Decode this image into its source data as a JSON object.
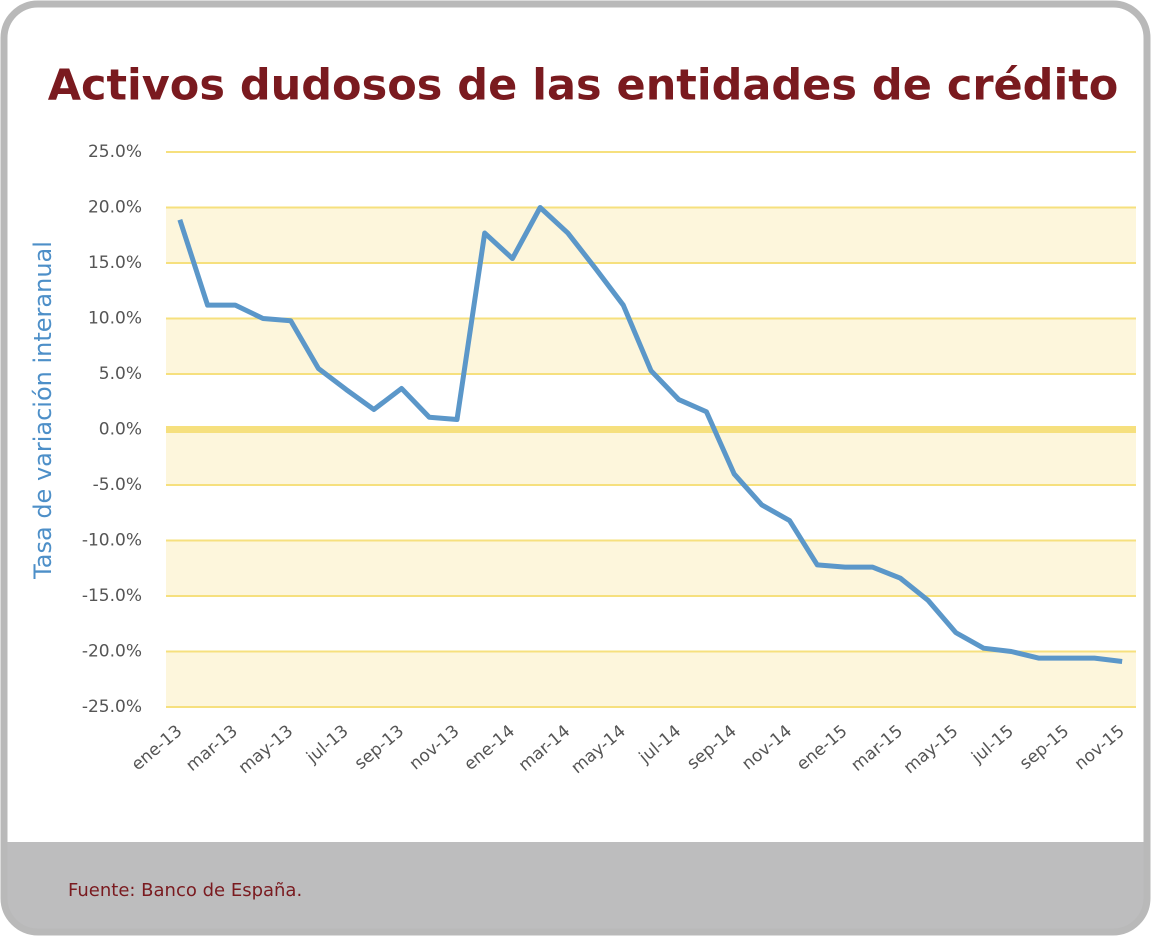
{
  "chart_data": {
    "type": "line",
    "title": "Activos dudosos de las entidades de crédito",
    "y_label": "Tasa de variación interanual",
    "source": "Fuente: Banco de España.",
    "categories": [
      "ene-13",
      null,
      "mar-13",
      null,
      "may-13",
      null,
      "jul-13",
      null,
      "sep-13",
      null,
      "nov-13",
      null,
      "ene-14",
      null,
      "mar-14",
      null,
      "may-14",
      null,
      "jul-14",
      null,
      "sep-14",
      null,
      "nov-14",
      null,
      "ene-15",
      null,
      "mar-15",
      null,
      "may-15",
      null,
      "jul-15",
      null,
      "sep-15",
      null,
      "nov-15"
    ],
    "series": [
      {
        "name": "Activos dudosos",
        "color": "#5b97c9",
        "values": [
          18.9,
          11.2,
          11.2,
          10.0,
          9.8,
          5.5,
          3.6,
          1.8,
          3.7,
          1.1,
          0.9,
          17.7,
          15.4,
          20.0,
          17.7,
          14.5,
          11.2,
          5.3,
          2.7,
          1.6,
          -4.0,
          -6.8,
          -8.2,
          -12.2,
          -12.4,
          -12.4,
          -13.4,
          -15.4,
          -18.3,
          -19.7,
          -20.0,
          -20.6,
          -20.6,
          -20.6,
          -20.9
        ]
      }
    ],
    "ylim": [
      -25,
      25
    ],
    "yticks": [
      {
        "value": 25,
        "label": "25.0%"
      },
      {
        "value": 20,
        "label": "20.0%"
      },
      {
        "value": 15,
        "label": "15.0%"
      },
      {
        "value": 10,
        "label": "10.0%"
      },
      {
        "value": 5,
        "label": "5.0%"
      },
      {
        "value": 0,
        "label": "0.0%"
      },
      {
        "value": -5,
        "label": "-5.0%"
      },
      {
        "value": -10,
        "label": "-10.0%"
      },
      {
        "value": -15,
        "label": "-15.0%"
      },
      {
        "value": -20,
        "label": "-20.0%"
      },
      {
        "value": -25,
        "label": "-25.0%"
      }
    ],
    "grid": true,
    "legend": false
  }
}
